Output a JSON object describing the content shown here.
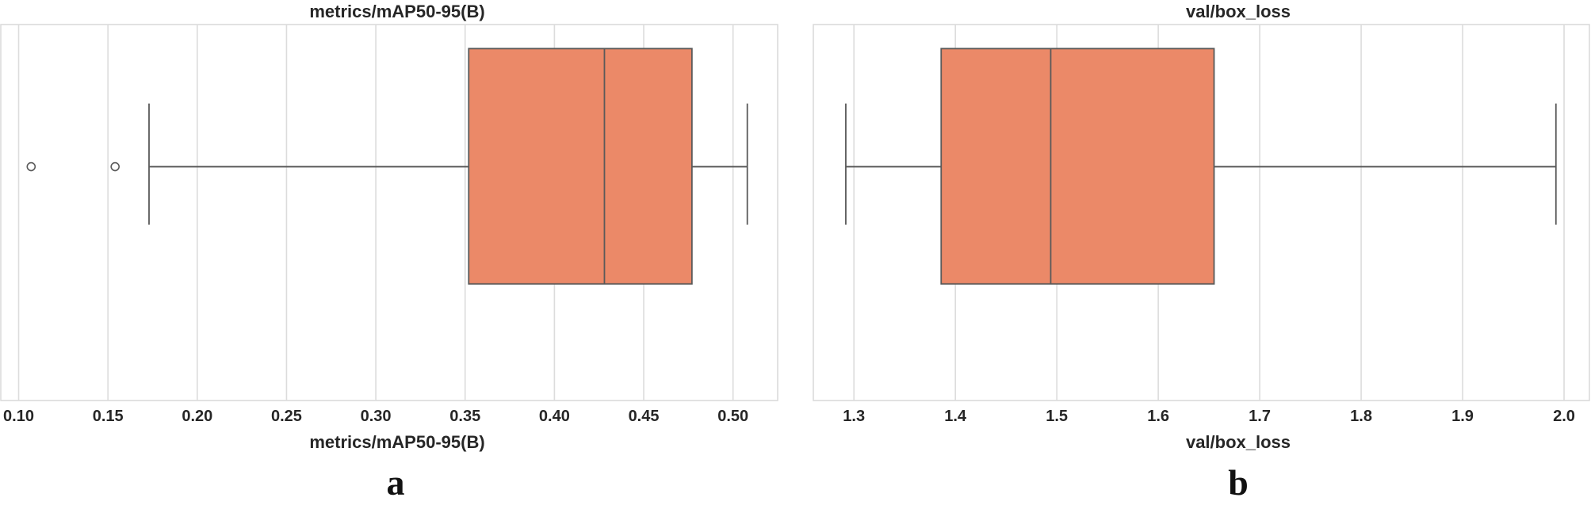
{
  "chart_data": [
    {
      "type": "box",
      "title": "metrics/mAP50-95(B)",
      "xlabel": "metrics/mAP50-95(B)",
      "xlim": [
        0.09,
        0.525
      ],
      "ticks": [
        0.1,
        0.15,
        0.2,
        0.25,
        0.3,
        0.35,
        0.4,
        0.45,
        0.5
      ],
      "tick_labels": [
        "0.10",
        "0.15",
        "0.20",
        "0.25",
        "0.30",
        "0.35",
        "0.40",
        "0.45",
        "0.50"
      ],
      "grid": true,
      "color": "#eb8968",
      "box": {
        "whisker_low": 0.173,
        "q1": 0.352,
        "median": 0.428,
        "q3": 0.477,
        "whisker_high": 0.508
      },
      "outliers": [
        0.107,
        0.154
      ],
      "panel_label": "a"
    },
    {
      "type": "box",
      "title": "val/box_loss",
      "xlabel": "val/box_loss",
      "xlim": [
        1.26,
        2.025
      ],
      "ticks": [
        1.3,
        1.4,
        1.5,
        1.6,
        1.7,
        1.8,
        1.9,
        2.0
      ],
      "tick_labels": [
        "1.3",
        "1.4",
        "1.5",
        "1.6",
        "1.7",
        "1.8",
        "1.9",
        "2.0"
      ],
      "grid": true,
      "color": "#eb8968",
      "box": {
        "whisker_low": 1.292,
        "q1": 1.386,
        "median": 1.494,
        "q3": 1.655,
        "whisker_high": 1.992
      },
      "outliers": [],
      "panel_label": "b"
    }
  ]
}
